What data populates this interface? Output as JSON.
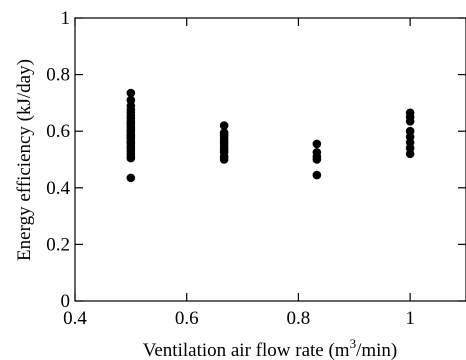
{
  "chart_data": {
    "type": "scatter",
    "title": "",
    "xlabel": "Ventilation air flow rate (m",
    "xlabel_sup": "3",
    "xlabel_suffix": "/min)",
    "ylabel": "Energy efficiency (kJ/day)",
    "xlim": [
      0.4,
      1.1
    ],
    "ylim": [
      0,
      1
    ],
    "x_ticks": [
      0.4,
      0.6,
      0.8,
      1.0
    ],
    "x_tick_labels": [
      "0.4",
      "0.6",
      "0.8",
      "1"
    ],
    "y_ticks": [
      0,
      0.2,
      0.4,
      0.6,
      0.8,
      1.0
    ],
    "y_tick_labels": [
      "0",
      "0.2",
      "0.4",
      "0.6",
      "0.8",
      "1"
    ],
    "grid": false,
    "marker_color": "#000000",
    "series": [
      {
        "x": [
          0.5,
          0.5,
          0.5,
          0.5,
          0.5,
          0.5,
          0.5,
          0.5,
          0.5,
          0.5,
          0.5,
          0.5,
          0.5,
          0.5,
          0.5,
          0.5,
          0.5,
          0.5,
          0.5,
          0.5,
          0.5,
          0.5,
          0.5,
          0.5,
          0.5,
          0.5,
          0.5,
          0.667,
          0.667,
          0.667,
          0.667,
          0.667,
          0.667,
          0.667,
          0.667,
          0.667,
          0.667,
          0.667,
          0.833,
          0.833,
          0.833,
          0.833,
          0.833,
          1.0,
          1.0,
          1.0,
          1.0,
          1.0,
          1.0,
          1.0,
          1.0
        ],
        "y": [
          0.735,
          0.71,
          0.69,
          0.675,
          0.665,
          0.655,
          0.645,
          0.635,
          0.625,
          0.615,
          0.605,
          0.6,
          0.59,
          0.585,
          0.575,
          0.565,
          0.56,
          0.555,
          0.545,
          0.54,
          0.53,
          0.52,
          0.51,
          0.505,
          0.63,
          0.58,
          0.435,
          0.62,
          0.595,
          0.585,
          0.575,
          0.565,
          0.555,
          0.545,
          0.535,
          0.525,
          0.51,
          0.5,
          0.555,
          0.525,
          0.51,
          0.5,
          0.445,
          0.665,
          0.65,
          0.635,
          0.6,
          0.58,
          0.56,
          0.54,
          0.52
        ]
      }
    ]
  }
}
